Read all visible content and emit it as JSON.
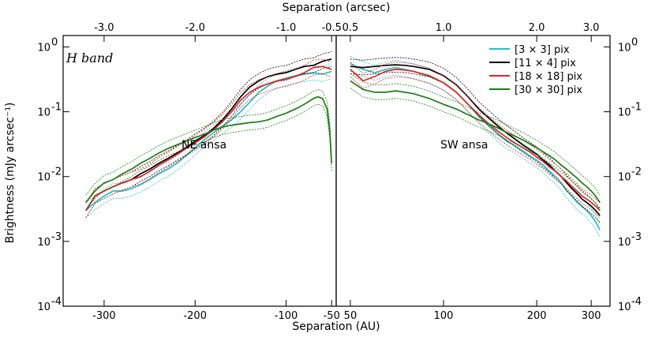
{
  "chart_data": {
    "type": "line",
    "xlabel": "Separation (AU)",
    "x2label": "Separation (arcsec)",
    "ylabel": "Brightness (mJy arcsec⁻¹)",
    "yscale": "log",
    "ylim": [
      0.0001,
      1.5
    ],
    "y_ticks": [
      {
        "value": 0.0001,
        "label": "10",
        "exp": "-4"
      },
      {
        "value": 0.001,
        "label": "10",
        "exp": "-3"
      },
      {
        "value": 0.01,
        "label": "10",
        "exp": "-2"
      },
      {
        "value": 0.1,
        "label": "10",
        "exp": "-1"
      },
      {
        "value": 1,
        "label": "10",
        "exp": "0"
      }
    ],
    "band_label": "H band",
    "legend": {
      "placement": "top-right",
      "entries": [
        {
          "name": "[3 × 3] pix",
          "color": "#1ec2c8"
        },
        {
          "name": "[11 × 4] pix",
          "color": "#000000"
        },
        {
          "name": "[18 × 18] pix",
          "color": "#e8201e"
        },
        {
          "name": "[30 × 30] pix",
          "color": "#1a7f12"
        }
      ]
    },
    "panels": [
      {
        "name": "NE ansa",
        "xscale": "linear",
        "xlim": [
          -345,
          -45
        ],
        "x_ticks": [
          -300,
          -200,
          -100,
          -50
        ],
        "x_tick_labels": [
          "-300",
          "-200",
          "-100",
          "-50"
        ],
        "x2_ticks": [
          -3.0,
          -2.0,
          -1.0,
          -0.5
        ],
        "x2_tick_labels": [
          "-3.0",
          "-2.0",
          "-1.0",
          "-0.5"
        ],
        "series": [
          {
            "name": "[3 × 3] pix",
            "x": [
              -320,
              -310,
              -300,
              -290,
              -280,
              -270,
              -260,
              -250,
              -240,
              -230,
              -220,
              -210,
              -200,
              -190,
              -180,
              -170,
              -160,
              -150,
              -140,
              -130,
              -120,
              -110,
              -100,
              -90,
              -80,
              -70,
              -60,
              -50
            ],
            "y": [
              0.003,
              0.004,
              0.005,
              0.006,
              0.006,
              0.0065,
              0.0075,
              0.009,
              0.011,
              0.013,
              0.016,
              0.021,
              0.028,
              0.037,
              0.047,
              0.06,
              0.075,
              0.1,
              0.14,
              0.2,
              0.25,
              0.3,
              0.33,
              0.36,
              0.38,
              0.4,
              0.38,
              0.42
            ]
          },
          {
            "name": "[11 × 4] pix",
            "x": [
              -320,
              -310,
              -300,
              -290,
              -280,
              -270,
              -260,
              -250,
              -240,
              -230,
              -220,
              -210,
              -200,
              -190,
              -180,
              -170,
              -160,
              -150,
              -140,
              -130,
              -120,
              -110,
              -100,
              -90,
              -80,
              -70,
              -60,
              -50
            ],
            "y": [
              0.003,
              0.005,
              0.006,
              0.007,
              0.008,
              0.009,
              0.011,
              0.013,
              0.016,
              0.019,
              0.023,
              0.028,
              0.035,
              0.043,
              0.055,
              0.075,
              0.11,
              0.17,
              0.24,
              0.3,
              0.35,
              0.38,
              0.4,
              0.45,
              0.5,
              0.52,
              0.6,
              0.65
            ]
          },
          {
            "name": "[18 × 18] pix",
            "x": [
              -320,
              -310,
              -300,
              -290,
              -280,
              -270,
              -260,
              -250,
              -240,
              -230,
              -220,
              -210,
              -200,
              -190,
              -180,
              -170,
              -160,
              -150,
              -140,
              -130,
              -120,
              -110,
              -100,
              -90,
              -80,
              -70,
              -60,
              -50
            ],
            "y": [
              0.003,
              0.005,
              0.006,
              0.007,
              0.008,
              0.009,
              0.01,
              0.012,
              0.015,
              0.018,
              0.022,
              0.027,
              0.033,
              0.041,
              0.052,
              0.07,
              0.1,
              0.15,
              0.2,
              0.24,
              0.27,
              0.3,
              0.32,
              0.35,
              0.4,
              0.48,
              0.5,
              0.45
            ]
          },
          {
            "name": "[30 × 30] pix",
            "x": [
              -320,
              -310,
              -300,
              -290,
              -280,
              -270,
              -260,
              -250,
              -240,
              -230,
              -220,
              -210,
              -200,
              -190,
              -180,
              -170,
              -160,
              -150,
              -140,
              -130,
              -120,
              -110,
              -100,
              -90,
              -80,
              -70,
              -65,
              -60,
              -55,
              -52,
              -50
            ],
            "y": [
              0.004,
              0.006,
              0.008,
              0.009,
              0.011,
              0.013,
              0.016,
              0.019,
              0.023,
              0.027,
              0.031,
              0.035,
              0.04,
              0.045,
              0.052,
              0.058,
              0.062,
              0.065,
              0.068,
              0.07,
              0.075,
              0.085,
              0.095,
              0.11,
              0.13,
              0.16,
              0.17,
              0.16,
              0.11,
              0.05,
              0.016
            ]
          }
        ]
      },
      {
        "name": "SW ansa",
        "xscale": "log",
        "xlim": [
          45,
          345
        ],
        "x_ticks": [
          50,
          100,
          200,
          300
        ],
        "x_tick_labels": [
          "50",
          "100",
          "200",
          "300"
        ],
        "x2_ticks": [
          0.5,
          1.0,
          2.0,
          3.0
        ],
        "x2_tick_labels": [
          "0.5",
          "1.0",
          "2.0",
          "3.0"
        ],
        "series": [
          {
            "name": "[3 × 3] pix",
            "x": [
              50,
              55,
              60,
              65,
              70,
              75,
              80,
              90,
              100,
              110,
              120,
              130,
              140,
              150,
              160,
              170,
              180,
              190,
              200,
              210,
              220,
              230,
              240,
              250,
              260,
              270,
              280,
              290,
              300,
              310,
              320
            ],
            "y": [
              0.55,
              0.45,
              0.4,
              0.45,
              0.48,
              0.45,
              0.42,
              0.35,
              0.28,
              0.2,
              0.13,
              0.085,
              0.06,
              0.045,
              0.035,
              0.03,
              0.025,
              0.021,
              0.018,
              0.015,
              0.012,
              0.01,
              0.008,
              0.006,
              0.005,
              0.004,
              0.0035,
              0.003,
              0.0025,
              0.002,
              0.0015
            ]
          },
          {
            "name": "[11 × 4] pix",
            "x": [
              50,
              55,
              60,
              65,
              70,
              75,
              80,
              90,
              100,
              110,
              120,
              130,
              140,
              150,
              160,
              170,
              180,
              190,
              200,
              210,
              220,
              230,
              240,
              250,
              260,
              270,
              280,
              290,
              300,
              310,
              320
            ],
            "y": [
              0.5,
              0.48,
              0.5,
              0.52,
              0.53,
              0.52,
              0.5,
              0.45,
              0.36,
              0.26,
              0.17,
              0.11,
              0.08,
              0.06,
              0.047,
              0.038,
              0.031,
              0.026,
              0.022,
              0.018,
              0.015,
              0.012,
              0.01,
              0.008,
              0.0065,
              0.0055,
              0.0045,
              0.004,
              0.0035,
              0.003,
              0.0025
            ]
          },
          {
            "name": "[18 × 18] pix",
            "x": [
              50,
              55,
              60,
              65,
              70,
              75,
              80,
              90,
              100,
              110,
              120,
              130,
              140,
              150,
              160,
              170,
              180,
              190,
              200,
              210,
              220,
              230,
              240,
              250,
              260,
              270,
              280,
              290,
              300,
              310,
              320
            ],
            "y": [
              0.45,
              0.3,
              0.35,
              0.42,
              0.45,
              0.44,
              0.42,
              0.36,
              0.28,
              0.2,
              0.13,
              0.09,
              0.065,
              0.05,
              0.04,
              0.033,
              0.028,
              0.024,
              0.02,
              0.017,
              0.014,
              0.012,
              0.01,
              0.0085,
              0.007,
              0.006,
              0.005,
              0.0045,
              0.004,
              0.0035,
              0.003
            ]
          },
          {
            "name": "[30 × 30] pix",
            "x": [
              50,
              55,
              60,
              65,
              70,
              75,
              80,
              90,
              100,
              110,
              120,
              130,
              140,
              150,
              160,
              170,
              180,
              190,
              200,
              210,
              220,
              230,
              240,
              250,
              260,
              270,
              280,
              290,
              300,
              310,
              320
            ],
            "y": [
              0.3,
              0.22,
              0.2,
              0.2,
              0.21,
              0.2,
              0.19,
              0.16,
              0.13,
              0.11,
              0.09,
              0.075,
              0.065,
              0.056,
              0.048,
              0.042,
              0.037,
              0.032,
              0.028,
              0.024,
              0.021,
              0.018,
              0.015,
              0.013,
              0.011,
              0.0095,
              0.008,
              0.007,
              0.006,
              0.005,
              0.004
            ]
          }
        ]
      }
    ]
  }
}
